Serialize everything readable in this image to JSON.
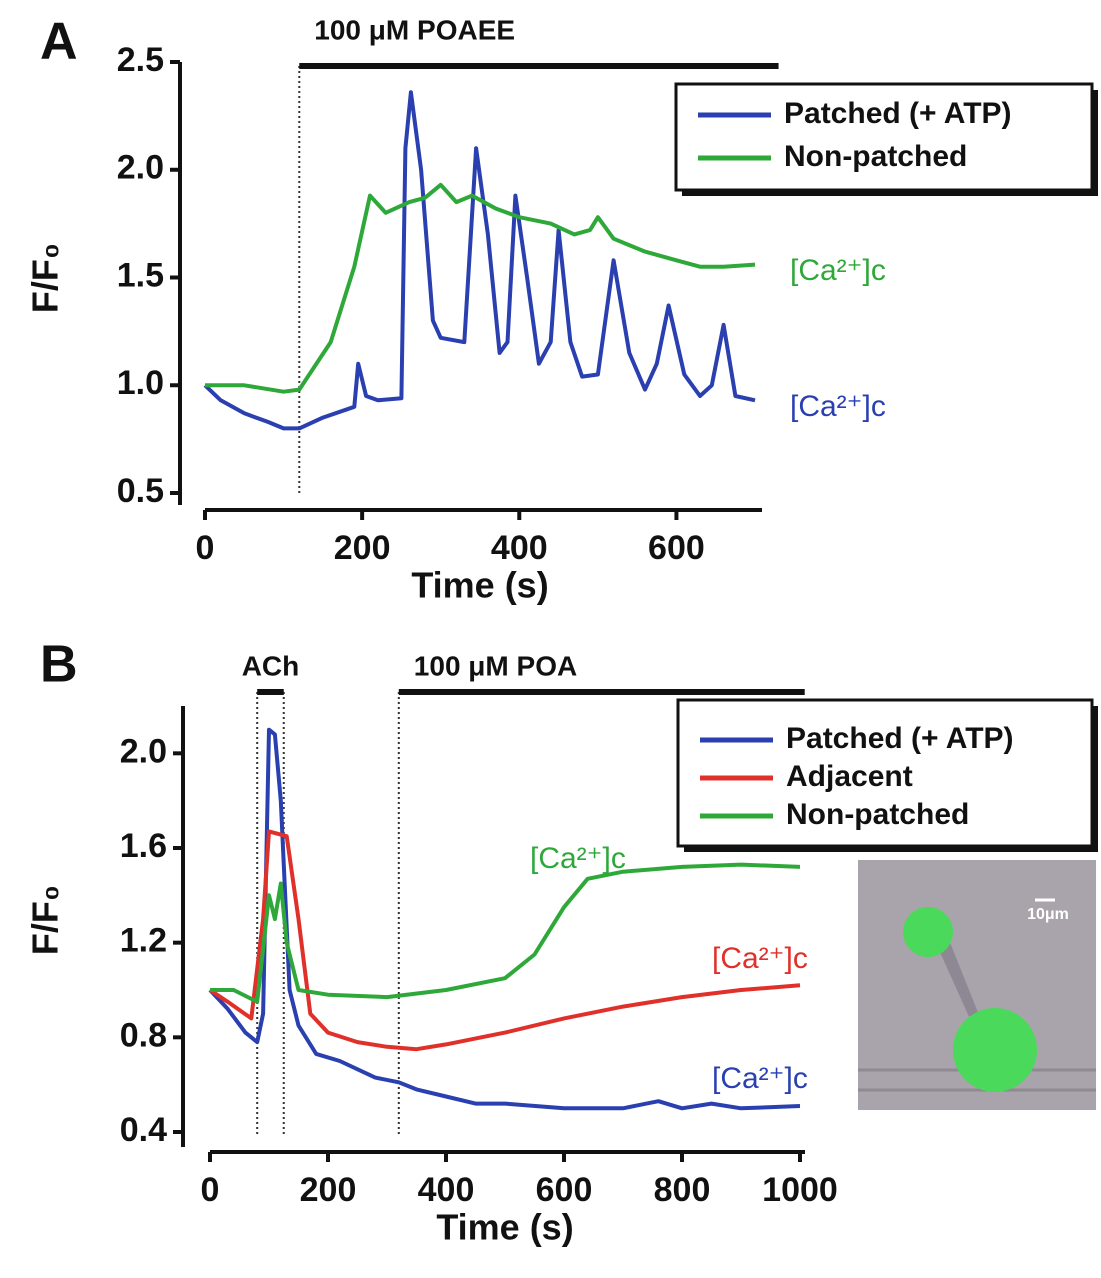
{
  "chart_data": [
    {
      "type": "line",
      "panel": "A",
      "x_label": "Time (s)",
      "y_label": "F/F₀",
      "xlim": [
        0,
        700
      ],
      "xticks": [
        0,
        200,
        400,
        600
      ],
      "ylim": [
        0.5,
        2.5
      ],
      "yticks": [
        0.5,
        {
          "value": 1,
          "label": "1.0"
        },
        1.5,
        {
          "value": 2,
          "label": "2.0"
        },
        2.5
      ],
      "legend": "upper right",
      "events": [
        {
          "label": "100 μM POAEE",
          "start": 120,
          "end": 730
        }
      ],
      "dotted_lines": [
        120
      ],
      "series": [
        {
          "name": "Patched (+ ATP)",
          "color": "#2a3fb0",
          "label": "[Ca²⁺]c",
          "x": [
            0,
            20,
            50,
            80,
            100,
            120,
            150,
            190,
            195,
            205,
            220,
            250,
            255,
            262,
            275,
            290,
            300,
            330,
            345,
            360,
            375,
            385,
            395,
            410,
            425,
            440,
            450,
            465,
            480,
            500,
            520,
            540,
            560,
            575,
            590,
            610,
            630,
            645,
            660,
            675,
            700
          ],
          "values": [
            1.0,
            0.93,
            0.87,
            0.83,
            0.8,
            0.8,
            0.85,
            0.9,
            1.1,
            0.95,
            0.93,
            0.94,
            2.1,
            2.36,
            2.0,
            1.3,
            1.22,
            1.2,
            2.1,
            1.7,
            1.15,
            1.2,
            1.88,
            1.5,
            1.1,
            1.2,
            1.72,
            1.2,
            1.04,
            1.05,
            1.58,
            1.15,
            0.98,
            1.1,
            1.37,
            1.05,
            0.95,
            1.0,
            1.28,
            0.95,
            0.93
          ]
        },
        {
          "name": "Non-patched",
          "color": "#2fa83a",
          "label": "[Ca²⁺]c",
          "x": [
            0,
            50,
            100,
            120,
            160,
            190,
            210,
            230,
            260,
            280,
            300,
            320,
            340,
            370,
            400,
            440,
            470,
            490,
            500,
            520,
            560,
            600,
            630,
            660,
            700
          ],
          "values": [
            1.0,
            1.0,
            0.97,
            0.98,
            1.2,
            1.55,
            1.88,
            1.8,
            1.85,
            1.87,
            1.93,
            1.85,
            1.88,
            1.82,
            1.78,
            1.75,
            1.7,
            1.72,
            1.78,
            1.68,
            1.62,
            1.58,
            1.55,
            1.55,
            1.56
          ]
        }
      ]
    },
    {
      "type": "line",
      "panel": "B",
      "x_label": "Time (s)",
      "y_label": "F/F₀",
      "xlim": [
        0,
        1000
      ],
      "xticks": [
        0,
        200,
        400,
        600,
        800,
        1000
      ],
      "ylim": [
        0.4,
        2.2
      ],
      "yticks": [
        0.4,
        0.8,
        1.2,
        1.6,
        {
          "value": 2,
          "label": "2.0"
        }
      ],
      "legend": "upper right",
      "events": [
        {
          "label": "ACh",
          "start": 80,
          "end": 125
        },
        {
          "label": "100 μM POA",
          "start": 320,
          "end": 1008
        }
      ],
      "dotted_lines": [
        80,
        125,
        320
      ],
      "inset": {
        "label": "10μm"
      },
      "series": [
        {
          "name": "Patched (+ ATP)",
          "color": "#2a3fb0",
          "label": "[Ca²⁺]c",
          "x": [
            0,
            30,
            60,
            80,
            90,
            100,
            110,
            120,
            135,
            150,
            180,
            220,
            280,
            320,
            350,
            400,
            450,
            500,
            600,
            700,
            760,
            800,
            850,
            900,
            1000
          ],
          "values": [
            1.0,
            0.92,
            0.82,
            0.78,
            0.9,
            2.1,
            2.08,
            1.8,
            1.0,
            0.85,
            0.73,
            0.7,
            0.63,
            0.61,
            0.58,
            0.55,
            0.52,
            0.52,
            0.5,
            0.5,
            0.53,
            0.5,
            0.52,
            0.5,
            0.51
          ]
        },
        {
          "name": "Adjacent",
          "color": "#e0302a",
          "label": "[Ca²⁺]c",
          "x": [
            0,
            30,
            70,
            90,
            100,
            130,
            150,
            170,
            200,
            250,
            300,
            350,
            400,
            500,
            600,
            700,
            800,
            900,
            1000
          ],
          "values": [
            1.0,
            0.95,
            0.88,
            1.3,
            1.67,
            1.65,
            1.3,
            0.9,
            0.82,
            0.78,
            0.76,
            0.75,
            0.77,
            0.82,
            0.88,
            0.93,
            0.97,
            1.0,
            1.02
          ]
        },
        {
          "name": "Non-patched",
          "color": "#2fa83a",
          "label": "[Ca²⁺]c",
          "x": [
            0,
            40,
            80,
            100,
            110,
            120,
            130,
            150,
            200,
            300,
            400,
            500,
            550,
            600,
            640,
            700,
            800,
            900,
            1000
          ],
          "values": [
            1.0,
            1.0,
            0.95,
            1.4,
            1.3,
            1.45,
            1.2,
            1.0,
            0.98,
            0.97,
            1.0,
            1.05,
            1.15,
            1.35,
            1.47,
            1.5,
            1.52,
            1.53,
            1.52
          ]
        }
      ]
    }
  ]
}
